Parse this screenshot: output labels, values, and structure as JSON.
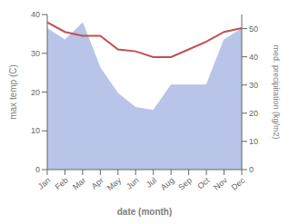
{
  "chart_data": {
    "type": "line",
    "xlabel": "date (month)",
    "ylabel": "max temp (C)",
    "y2label": "med. precipitation (kg/m2)",
    "categories": [
      "Jan",
      "Feb",
      "Mar",
      "Apr",
      "May",
      "Jun",
      "Jul",
      "Aug",
      "Sep",
      "Oct",
      "Nov",
      "Dec"
    ],
    "series": [
      {
        "type": "area",
        "axis": "y2",
        "color": "#b8c4e8",
        "values": [
          50,
          46,
          52,
          36,
          27,
          22,
          21,
          30,
          30,
          30,
          46,
          50
        ]
      },
      {
        "type": "line",
        "color": "#c0504d",
        "values": [
          38,
          35.5,
          34.5,
          34.5,
          31,
          30.5,
          29,
          29,
          31,
          33,
          35.5,
          36.5
        ]
      }
    ],
    "ylim": [
      0,
      40
    ],
    "yticks": [
      0,
      10,
      20,
      30,
      40
    ],
    "y2lim": [
      0,
      55
    ],
    "y2ticks": [
      0,
      10,
      20,
      30,
      40,
      50
    ],
    "grid": false
  }
}
